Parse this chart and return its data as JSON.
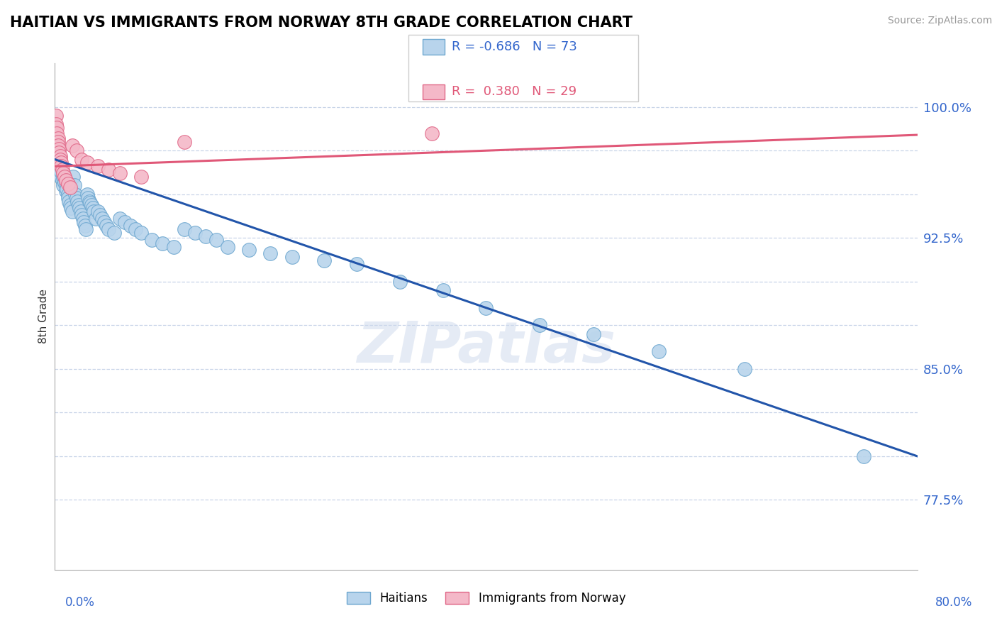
{
  "title": "HAITIAN VS IMMIGRANTS FROM NORWAY 8TH GRADE CORRELATION CHART",
  "source": "Source: ZipAtlas.com",
  "ylabel": "8th Grade",
  "xmin": 0.0,
  "xmax": 0.8,
  "ymin": 0.735,
  "ymax": 1.025,
  "blue_color": "#b8d4ec",
  "blue_edge": "#6fa8d0",
  "pink_color": "#f4b8c8",
  "pink_edge": "#e06888",
  "line_blue": "#2255aa",
  "line_pink": "#e05878",
  "legend_R_blue": "-0.686",
  "legend_N_blue": "73",
  "legend_R_pink": "0.380",
  "legend_N_pink": "29",
  "legend_label_blue": "Haitians",
  "legend_label_pink": "Immigrants from Norway",
  "ytick_vals": [
    0.775,
    0.8,
    0.825,
    0.85,
    0.875,
    0.9,
    0.925,
    0.95,
    0.975,
    1.0
  ],
  "ytick_labels": [
    "77.5%",
    "",
    "",
    "85.0%",
    "",
    "",
    "92.5%",
    "",
    "",
    "100.0%"
  ],
  "blue_line_x0": 0.0,
  "blue_line_y0": 0.97,
  "blue_line_x1": 0.8,
  "blue_line_y1": 0.8,
  "pink_line_x0": 0.0,
  "pink_line_y0": 0.966,
  "pink_line_x1": 0.8,
  "pink_line_y1": 0.984,
  "blue_x": [
    0.002,
    0.003,
    0.003,
    0.004,
    0.005,
    0.006,
    0.007,
    0.008,
    0.008,
    0.009,
    0.01,
    0.01,
    0.011,
    0.012,
    0.012,
    0.013,
    0.014,
    0.015,
    0.016,
    0.017,
    0.018,
    0.019,
    0.02,
    0.021,
    0.022,
    0.023,
    0.024,
    0.025,
    0.026,
    0.027,
    0.028,
    0.029,
    0.03,
    0.031,
    0.032,
    0.033,
    0.034,
    0.035,
    0.036,
    0.038,
    0.04,
    0.042,
    0.044,
    0.046,
    0.048,
    0.05,
    0.055,
    0.06,
    0.065,
    0.07,
    0.075,
    0.08,
    0.09,
    0.1,
    0.11,
    0.12,
    0.13,
    0.14,
    0.15,
    0.16,
    0.18,
    0.2,
    0.22,
    0.25,
    0.28,
    0.32,
    0.36,
    0.4,
    0.45,
    0.5,
    0.56,
    0.64,
    0.75
  ],
  "blue_y": [
    0.968,
    0.965,
    0.962,
    0.964,
    0.96,
    0.963,
    0.958,
    0.955,
    0.96,
    0.957,
    0.955,
    0.952,
    0.953,
    0.95,
    0.948,
    0.946,
    0.944,
    0.942,
    0.94,
    0.96,
    0.955,
    0.95,
    0.948,
    0.946,
    0.944,
    0.942,
    0.94,
    0.938,
    0.936,
    0.934,
    0.932,
    0.93,
    0.95,
    0.948,
    0.946,
    0.945,
    0.944,
    0.942,
    0.94,
    0.936,
    0.94,
    0.938,
    0.936,
    0.934,
    0.932,
    0.93,
    0.928,
    0.936,
    0.934,
    0.932,
    0.93,
    0.928,
    0.924,
    0.922,
    0.92,
    0.93,
    0.928,
    0.926,
    0.924,
    0.92,
    0.918,
    0.916,
    0.914,
    0.912,
    0.91,
    0.9,
    0.895,
    0.885,
    0.875,
    0.87,
    0.86,
    0.85,
    0.8
  ],
  "pink_x": [
    0.001,
    0.001,
    0.002,
    0.002,
    0.003,
    0.003,
    0.003,
    0.004,
    0.004,
    0.005,
    0.005,
    0.006,
    0.006,
    0.007,
    0.008,
    0.009,
    0.01,
    0.012,
    0.014,
    0.016,
    0.02,
    0.025,
    0.03,
    0.04,
    0.05,
    0.06,
    0.08,
    0.12,
    0.35
  ],
  "pink_y": [
    0.995,
    0.99,
    0.988,
    0.985,
    0.982,
    0.98,
    0.978,
    0.976,
    0.974,
    0.972,
    0.97,
    0.968,
    0.966,
    0.964,
    0.962,
    0.96,
    0.958,
    0.956,
    0.954,
    0.978,
    0.975,
    0.97,
    0.968,
    0.966,
    0.964,
    0.962,
    0.96,
    0.98,
    0.985
  ]
}
